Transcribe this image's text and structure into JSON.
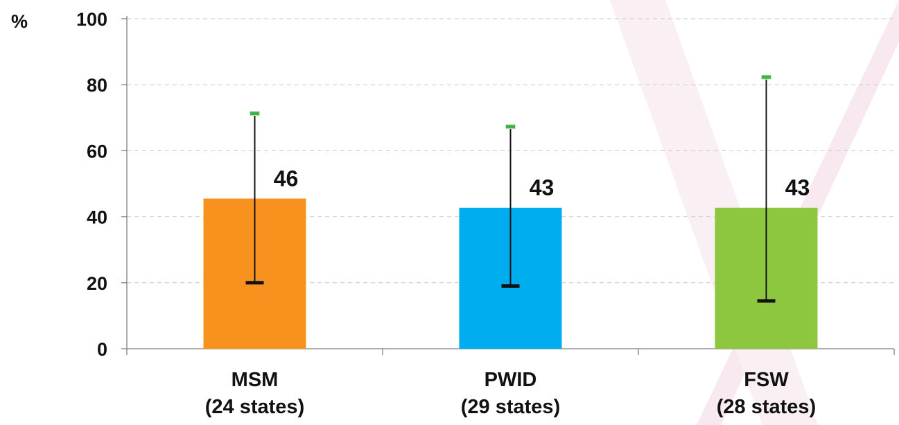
{
  "chart_data": {
    "type": "bar",
    "unit_label": "%",
    "categories": [
      {
        "name": "MSM",
        "note": "(24 states)"
      },
      {
        "name": "PWID",
        "note": "(29 states)"
      },
      {
        "name": "FSW",
        "note": "(28 states)"
      }
    ],
    "values": [
      45.5,
      42.7,
      42.7
    ],
    "data_labels": [
      "46",
      "43",
      "43"
    ],
    "error_low": [
      20,
      19,
      14.5
    ],
    "error_high": [
      71.3,
      67.3,
      82.3
    ],
    "colors": [
      "#F7921E",
      "#00AEEF",
      "#8DC63F"
    ],
    "cap_low_color": "#111111",
    "cap_high_color": "#39B54A",
    "ylim": [
      0,
      100
    ],
    "yticks": [
      "0",
      "20",
      "40",
      "60",
      "80",
      "100"
    ],
    "grid": true,
    "legend": "none"
  }
}
